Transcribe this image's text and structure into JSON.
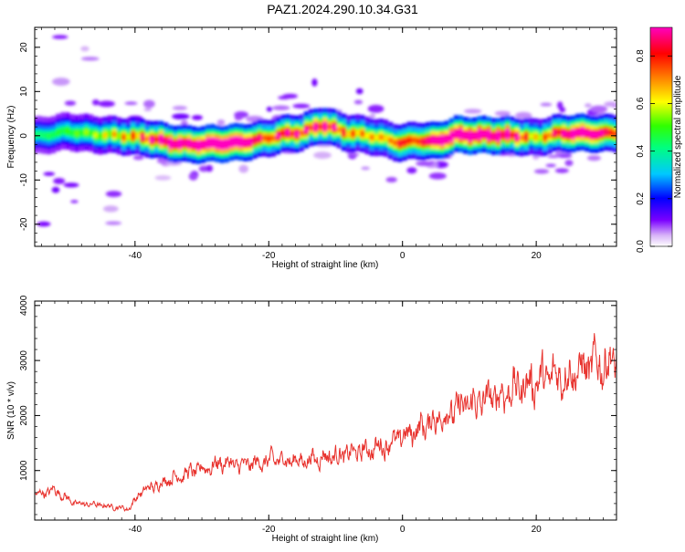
{
  "title": "PAZ1.2024.290.10.34.G31",
  "colors": {
    "axis": "#000000",
    "snr_line": "#e8332e",
    "background": "#ffffff"
  },
  "chart_data": [
    {
      "type": "heatmap",
      "xlabel": "Height of straight line (km)",
      "ylabel": "Frequency (Hz)",
      "xlim": [
        -55,
        32
      ],
      "ylim": [
        -25,
        24.5
      ],
      "x_ticks": [
        -40,
        -20,
        0,
        20
      ],
      "y_ticks": [
        -20,
        -10,
        0,
        10,
        20
      ],
      "colorbar": {
        "label": "Normalized spectral amplitude",
        "range": [
          0,
          0.92
        ],
        "ticks": [
          0.0,
          0.2,
          0.4,
          0.6,
          0.8
        ],
        "colormap": "rainbow (white-purple-blue-cyan-green-yellow-orange-red-magenta)"
      },
      "ridge": {
        "description": "frequency of dominant energy vs height",
        "x": [
          -54,
          -50,
          -46,
          -42,
          -38,
          -35,
          -32,
          -28,
          -24,
          -20,
          -18,
          -15,
          -12,
          -10,
          -8,
          -5,
          -2,
          0,
          2,
          5,
          8,
          12,
          16,
          20,
          23,
          26,
          29,
          32
        ],
        "y": [
          0,
          1,
          0.3,
          0,
          -0.5,
          -1.5,
          -2,
          -1.8,
          -1.5,
          -0.5,
          0.3,
          0.8,
          2.5,
          1.5,
          0.6,
          0.1,
          -1,
          -1.7,
          -1,
          -1.3,
          0.2,
          0.1,
          0.1,
          -0.5,
          0.5,
          0.6,
          0.5,
          0.6
        ],
        "amplitude": [
          0.35,
          0.4,
          0.45,
          0.55,
          0.7,
          0.85,
          0.8,
          0.9,
          0.88,
          0.6,
          0.75,
          0.7,
          0.8,
          0.7,
          0.6,
          0.55,
          0.55,
          0.7,
          0.6,
          0.85,
          0.9,
          0.9,
          0.85,
          0.5,
          0.7,
          0.85,
          0.8,
          0.6
        ]
      }
    },
    {
      "type": "line",
      "xlabel": "Height of straight line (km)",
      "ylabel": "SNR (10 * v/v)",
      "xlim": [
        -55,
        32
      ],
      "ylim": [
        100,
        4080
      ],
      "x_ticks": [
        -40,
        -20,
        0,
        20
      ],
      "y_ticks": [
        1000,
        2000,
        3000,
        4000
      ],
      "series": [
        {
          "trend_x": [
            -55,
            -52,
            -49,
            -46,
            -43,
            -41,
            -39,
            -37,
            -35,
            -33,
            -30,
            -27,
            -24,
            -21,
            -18,
            -15,
            -12,
            -9,
            -6,
            -3,
            0,
            3,
            6,
            9,
            12,
            15,
            18,
            21,
            24,
            27,
            30,
            32
          ],
          "trend_y": [
            550,
            650,
            400,
            380,
            340,
            300,
            620,
            720,
            850,
            920,
            1020,
            1150,
            1080,
            1150,
            1200,
            1180,
            1250,
            1280,
            1350,
            1450,
            1600,
            1800,
            2000,
            2150,
            2250,
            2400,
            2550,
            2650,
            2750,
            2850,
            2950,
            3000
          ]
        }
      ]
    }
  ]
}
